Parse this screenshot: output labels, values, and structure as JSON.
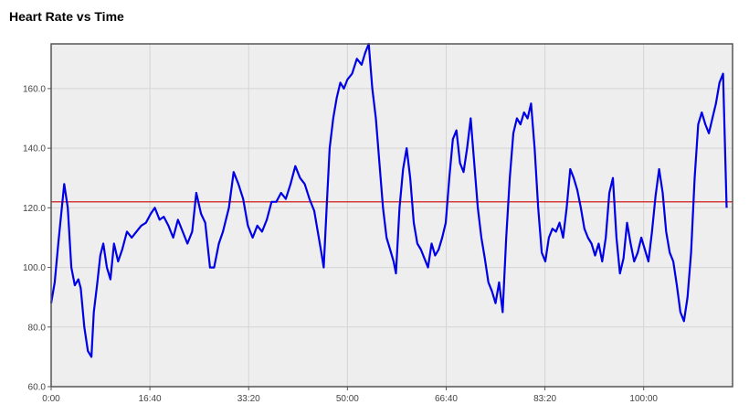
{
  "chart_data": {
    "type": "line",
    "title": "Heart Rate vs Time",
    "xlabel": "",
    "ylabel": "",
    "x_unit": "minutes",
    "xlim": [
      0,
      115
    ],
    "ylim": [
      60,
      175
    ],
    "x_ticks": [
      0,
      16.6667,
      33.3333,
      50,
      66.6667,
      83.3333,
      100
    ],
    "x_tick_labels": [
      "0:00",
      "16:40",
      "33:20",
      "50:00",
      "66:40",
      "83:20",
      "100:00"
    ],
    "y_ticks": [
      60,
      80,
      100,
      120,
      140,
      160
    ],
    "y_tick_labels": [
      "60.0",
      "80.0",
      "100.0",
      "120.0",
      "140.0",
      "160.0"
    ],
    "grid": true,
    "reference_line": {
      "y": 122,
      "color": "#cc0000"
    },
    "series": [
      {
        "color": "#0000e6",
        "points": [
          [
            0,
            88
          ],
          [
            0.6,
            95
          ],
          [
            1.2,
            108
          ],
          [
            1.8,
            120
          ],
          [
            2.2,
            128
          ],
          [
            2.8,
            120
          ],
          [
            3.4,
            100
          ],
          [
            4.0,
            94
          ],
          [
            4.6,
            96
          ],
          [
            5.0,
            93
          ],
          [
            5.6,
            80
          ],
          [
            6.2,
            72
          ],
          [
            6.8,
            70
          ],
          [
            7.2,
            85
          ],
          [
            7.8,
            95
          ],
          [
            8.3,
            104
          ],
          [
            8.8,
            108
          ],
          [
            9.4,
            100
          ],
          [
            10.0,
            96
          ],
          [
            10.6,
            108
          ],
          [
            11.3,
            102
          ],
          [
            12.0,
            106
          ],
          [
            12.8,
            112
          ],
          [
            13.6,
            110
          ],
          [
            14.4,
            112
          ],
          [
            15.2,
            114
          ],
          [
            16.0,
            115
          ],
          [
            16.8,
            118
          ],
          [
            17.5,
            120
          ],
          [
            18.3,
            116
          ],
          [
            19.0,
            117
          ],
          [
            19.8,
            114
          ],
          [
            20.6,
            110
          ],
          [
            21.4,
            116
          ],
          [
            22.2,
            112
          ],
          [
            23.0,
            108
          ],
          [
            23.8,
            112
          ],
          [
            24.5,
            125
          ],
          [
            25.3,
            118
          ],
          [
            26.0,
            115
          ],
          [
            26.8,
            100
          ],
          [
            27.5,
            100
          ],
          [
            28.3,
            108
          ],
          [
            29.0,
            112
          ],
          [
            30.0,
            120
          ],
          [
            30.8,
            132
          ],
          [
            31.6,
            128
          ],
          [
            32.4,
            123
          ],
          [
            33.2,
            114
          ],
          [
            34.0,
            110
          ],
          [
            34.8,
            114
          ],
          [
            35.6,
            112
          ],
          [
            36.4,
            116
          ],
          [
            37.2,
            122
          ],
          [
            38.0,
            122
          ],
          [
            38.8,
            125
          ],
          [
            39.6,
            123
          ],
          [
            40.4,
            128
          ],
          [
            41.2,
            134
          ],
          [
            42.0,
            130
          ],
          [
            42.8,
            128
          ],
          [
            43.6,
            123
          ],
          [
            44.4,
            119
          ],
          [
            45.0,
            112
          ],
          [
            45.6,
            105
          ],
          [
            46.0,
            100
          ],
          [
            46.5,
            120
          ],
          [
            47.0,
            140
          ],
          [
            47.6,
            150
          ],
          [
            48.2,
            157
          ],
          [
            48.8,
            162
          ],
          [
            49.4,
            160
          ],
          [
            50.0,
            163
          ],
          [
            50.8,
            165
          ],
          [
            51.6,
            170
          ],
          [
            52.4,
            168
          ],
          [
            53.0,
            172
          ],
          [
            53.6,
            175
          ],
          [
            54.2,
            160
          ],
          [
            54.8,
            150
          ],
          [
            55.4,
            135
          ],
          [
            56.0,
            120
          ],
          [
            56.6,
            110
          ],
          [
            57.2,
            106
          ],
          [
            57.8,
            102
          ],
          [
            58.2,
            98
          ],
          [
            58.8,
            120
          ],
          [
            59.4,
            133
          ],
          [
            60.0,
            140
          ],
          [
            60.6,
            130
          ],
          [
            61.2,
            115
          ],
          [
            61.8,
            108
          ],
          [
            62.4,
            106
          ],
          [
            63.0,
            103
          ],
          [
            63.6,
            100
          ],
          [
            64.2,
            108
          ],
          [
            64.8,
            104
          ],
          [
            65.4,
            106
          ],
          [
            66.0,
            110
          ],
          [
            66.6,
            115
          ],
          [
            67.2,
            130
          ],
          [
            67.8,
            143
          ],
          [
            68.4,
            146
          ],
          [
            69.0,
            135
          ],
          [
            69.6,
            132
          ],
          [
            70.2,
            140
          ],
          [
            70.8,
            150
          ],
          [
            71.4,
            135
          ],
          [
            72.0,
            120
          ],
          [
            72.6,
            110
          ],
          [
            73.2,
            103
          ],
          [
            73.8,
            95
          ],
          [
            74.4,
            92
          ],
          [
            75.0,
            88
          ],
          [
            75.6,
            95
          ],
          [
            76.2,
            85
          ],
          [
            76.8,
            110
          ],
          [
            77.4,
            130
          ],
          [
            78.0,
            145
          ],
          [
            78.6,
            150
          ],
          [
            79.2,
            148
          ],
          [
            79.8,
            152
          ],
          [
            80.4,
            150
          ],
          [
            81.0,
            155
          ],
          [
            81.6,
            140
          ],
          [
            82.2,
            120
          ],
          [
            82.8,
            105
          ],
          [
            83.4,
            102
          ],
          [
            84.0,
            110
          ],
          [
            84.6,
            113
          ],
          [
            85.2,
            112
          ],
          [
            85.8,
            115
          ],
          [
            86.4,
            110
          ],
          [
            87.0,
            120
          ],
          [
            87.6,
            133
          ],
          [
            88.2,
            130
          ],
          [
            88.8,
            126
          ],
          [
            89.4,
            120
          ],
          [
            90.0,
            113
          ],
          [
            90.6,
            110
          ],
          [
            91.2,
            108
          ],
          [
            91.8,
            104
          ],
          [
            92.4,
            108
          ],
          [
            93.0,
            102
          ],
          [
            93.6,
            110
          ],
          [
            94.2,
            125
          ],
          [
            94.8,
            130
          ],
          [
            95.4,
            110
          ],
          [
            96.0,
            98
          ],
          [
            96.6,
            103
          ],
          [
            97.2,
            115
          ],
          [
            97.8,
            108
          ],
          [
            98.4,
            102
          ],
          [
            99.0,
            105
          ],
          [
            99.6,
            110
          ],
          [
            100.2,
            106
          ],
          [
            100.8,
            102
          ],
          [
            101.4,
            112
          ],
          [
            102.0,
            124
          ],
          [
            102.6,
            133
          ],
          [
            103.2,
            125
          ],
          [
            103.8,
            112
          ],
          [
            104.4,
            105
          ],
          [
            105.0,
            102
          ],
          [
            105.6,
            94
          ],
          [
            106.2,
            85
          ],
          [
            106.8,
            82
          ],
          [
            107.4,
            90
          ],
          [
            108.0,
            105
          ],
          [
            108.6,
            130
          ],
          [
            109.2,
            148
          ],
          [
            109.8,
            152
          ],
          [
            110.4,
            148
          ],
          [
            111.0,
            145
          ],
          [
            111.6,
            150
          ],
          [
            112.2,
            155
          ],
          [
            112.8,
            162
          ],
          [
            113.4,
            165
          ],
          [
            114.0,
            120
          ]
        ]
      }
    ]
  }
}
